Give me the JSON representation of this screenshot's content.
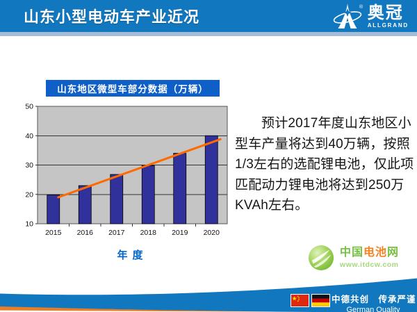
{
  "header": {
    "title": "山东小型电动车产业近况",
    "logo": {
      "name": "奥冠",
      "subname": "ALLGRAND",
      "registered": "®"
    }
  },
  "chart_data": {
    "type": "bar",
    "title": "山东地区微型车部分数据（万辆）",
    "categories": [
      "2015",
      "2016",
      "2017",
      "2018",
      "2019",
      "2020"
    ],
    "values": [
      19.8,
      23,
      26.8,
      29.8,
      34,
      40
    ],
    "trendline": {
      "start": 19,
      "end": 38.8
    },
    "xlabel": "年度",
    "ylabel": "",
    "ylim": [
      10,
      50
    ],
    "ytick_step": 10,
    "grid": true,
    "legend": false
  },
  "main": {
    "paragraph": "预计2017年度山东地区小型车产量将达到40万辆，按照1/3左右的选配锂电池，仅此项匹配动力锂电池将达到250万KVAh左右。"
  },
  "battery_logo": {
    "name_part1": "中国",
    "name_part2": "电池",
    "name_part3": "网",
    "url": "www.itdcw.com"
  },
  "footer": {
    "slogan_cn": "中德共创　传承严谨",
    "slogan_en": "German Quality"
  },
  "colors": {
    "header_blue": "#1177BE",
    "strip_blue": "#A6BCD6",
    "chart_title_bg": "#0F5FC8",
    "plot_bg": "#C5C5C5",
    "bar_fill": "#31319C",
    "trend_orange": "#FF6A00",
    "axis_label_blue": "#0066CC",
    "footer_blue": "#1177BE",
    "footer_orange": "#ED7D23",
    "battery_green": "#8DC63F",
    "battery_text_green": "#76C043",
    "battery_text_orange": "#F58220"
  }
}
